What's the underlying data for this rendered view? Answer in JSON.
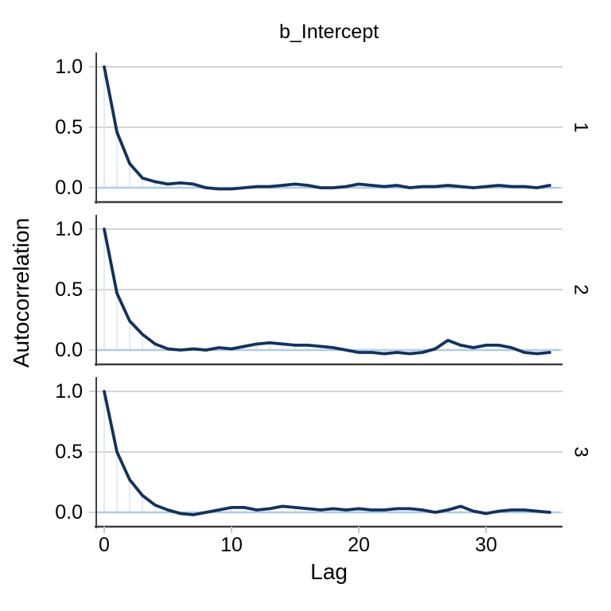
{
  "chart_data": {
    "type": "line",
    "title": "b_Intercept",
    "xlabel": "Lag",
    "ylabel": "Autocorrelation",
    "facet_position": "right",
    "grid": "horizontal-only",
    "legend": "none",
    "xlim": [
      0,
      35
    ],
    "ylim": [
      0,
      1
    ],
    "x_ticks": [
      "0",
      "10",
      "20",
      "30"
    ],
    "x_tick_lags": [
      0,
      10,
      20,
      30
    ],
    "y_ticks": [
      "1.0",
      "0.5",
      "0.0"
    ],
    "y_tick_values": [
      1.0,
      0.5,
      0.0
    ],
    "x_description": "lag 0 through lag 35, one point per integer lag",
    "series": [
      {
        "name": "1",
        "values": [
          1.0,
          0.46,
          0.2,
          0.08,
          0.05,
          0.03,
          0.04,
          0.03,
          0.0,
          -0.01,
          -0.01,
          0.0,
          0.01,
          0.01,
          0.02,
          0.03,
          0.02,
          0.0,
          0.0,
          0.01,
          0.03,
          0.02,
          0.01,
          0.02,
          0.0,
          0.01,
          0.01,
          0.02,
          0.01,
          0.0,
          0.01,
          0.02,
          0.01,
          0.01,
          0.0,
          0.02
        ]
      },
      {
        "name": "2",
        "values": [
          1.0,
          0.47,
          0.24,
          0.13,
          0.05,
          0.01,
          0.0,
          0.01,
          0.0,
          0.02,
          0.01,
          0.03,
          0.05,
          0.06,
          0.05,
          0.04,
          0.04,
          0.03,
          0.02,
          0.0,
          -0.02,
          -0.02,
          -0.03,
          -0.02,
          -0.03,
          -0.02,
          0.01,
          0.08,
          0.04,
          0.02,
          0.04,
          0.04,
          0.02,
          -0.02,
          -0.03,
          -0.02
        ]
      },
      {
        "name": "3",
        "values": [
          1.0,
          0.5,
          0.27,
          0.14,
          0.06,
          0.02,
          -0.01,
          -0.02,
          0.0,
          0.02,
          0.04,
          0.04,
          0.02,
          0.03,
          0.05,
          0.04,
          0.03,
          0.02,
          0.03,
          0.02,
          0.03,
          0.02,
          0.02,
          0.03,
          0.03,
          0.02,
          0.0,
          0.02,
          0.05,
          0.01,
          -0.01,
          0.01,
          0.02,
          0.02,
          0.01,
          0.0
        ]
      }
    ],
    "colors": {
      "acf_line": "#12325f",
      "stem": "#d7e5f2",
      "zero_baseline": "#b0cbe2",
      "gridline": "#d5d5d5",
      "axis_line": "#3f3f3f",
      "x_tick": "#c9c9c9",
      "text": "#000000",
      "background": "#ffffff"
    }
  }
}
